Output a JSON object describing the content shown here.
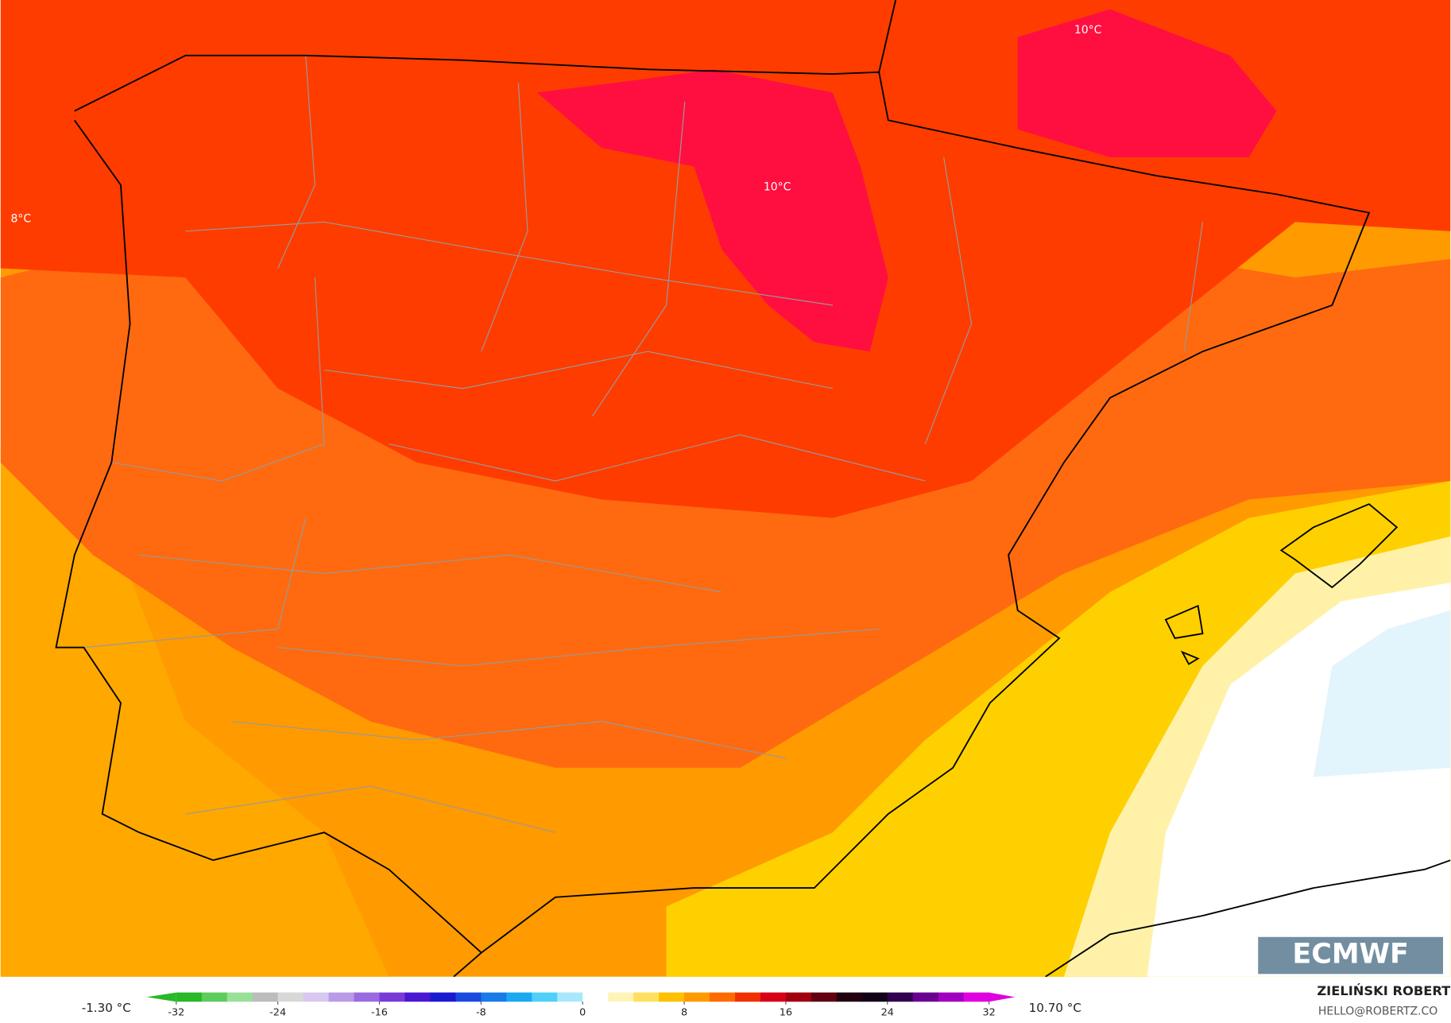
{
  "map": {
    "contour_labels": [
      "10°C",
      "10°C",
      "8°C"
    ],
    "logo": "ECMWF"
  },
  "colorbar": {
    "lim": [
      -32,
      32
    ],
    "ticks": [
      -32,
      -24,
      -16,
      -8,
      0,
      8,
      16,
      24,
      32
    ],
    "colors": [
      "#28b828",
      "#5ccc5c",
      "#98e098",
      "#bcbcbc",
      "#d8d8d8",
      "#d8c8f0",
      "#b89ae8",
      "#9a6ae0",
      "#7a3ad8",
      "#4a18d0",
      "#1a1ad0",
      "#1a4ae0",
      "#1a7ae8",
      "#1aa8f0",
      "#50d0f8",
      "#a8e8fc",
      "#ffffff",
      "#fff4b8",
      "#ffe060",
      "#ffc000",
      "#ff9a00",
      "#ff6a00",
      "#f03000",
      "#d80018",
      "#a00010",
      "#600010",
      "#200010",
      "#100018",
      "#300050",
      "#6a0090",
      "#a000c0",
      "#e000e0"
    ],
    "min_label": "-1.30 °C",
    "max_label": "10.70 °C"
  },
  "credit": {
    "author": "ZIELIŃSKI ROBERT",
    "email": "HELLO@ROBERTZ.CO"
  }
}
